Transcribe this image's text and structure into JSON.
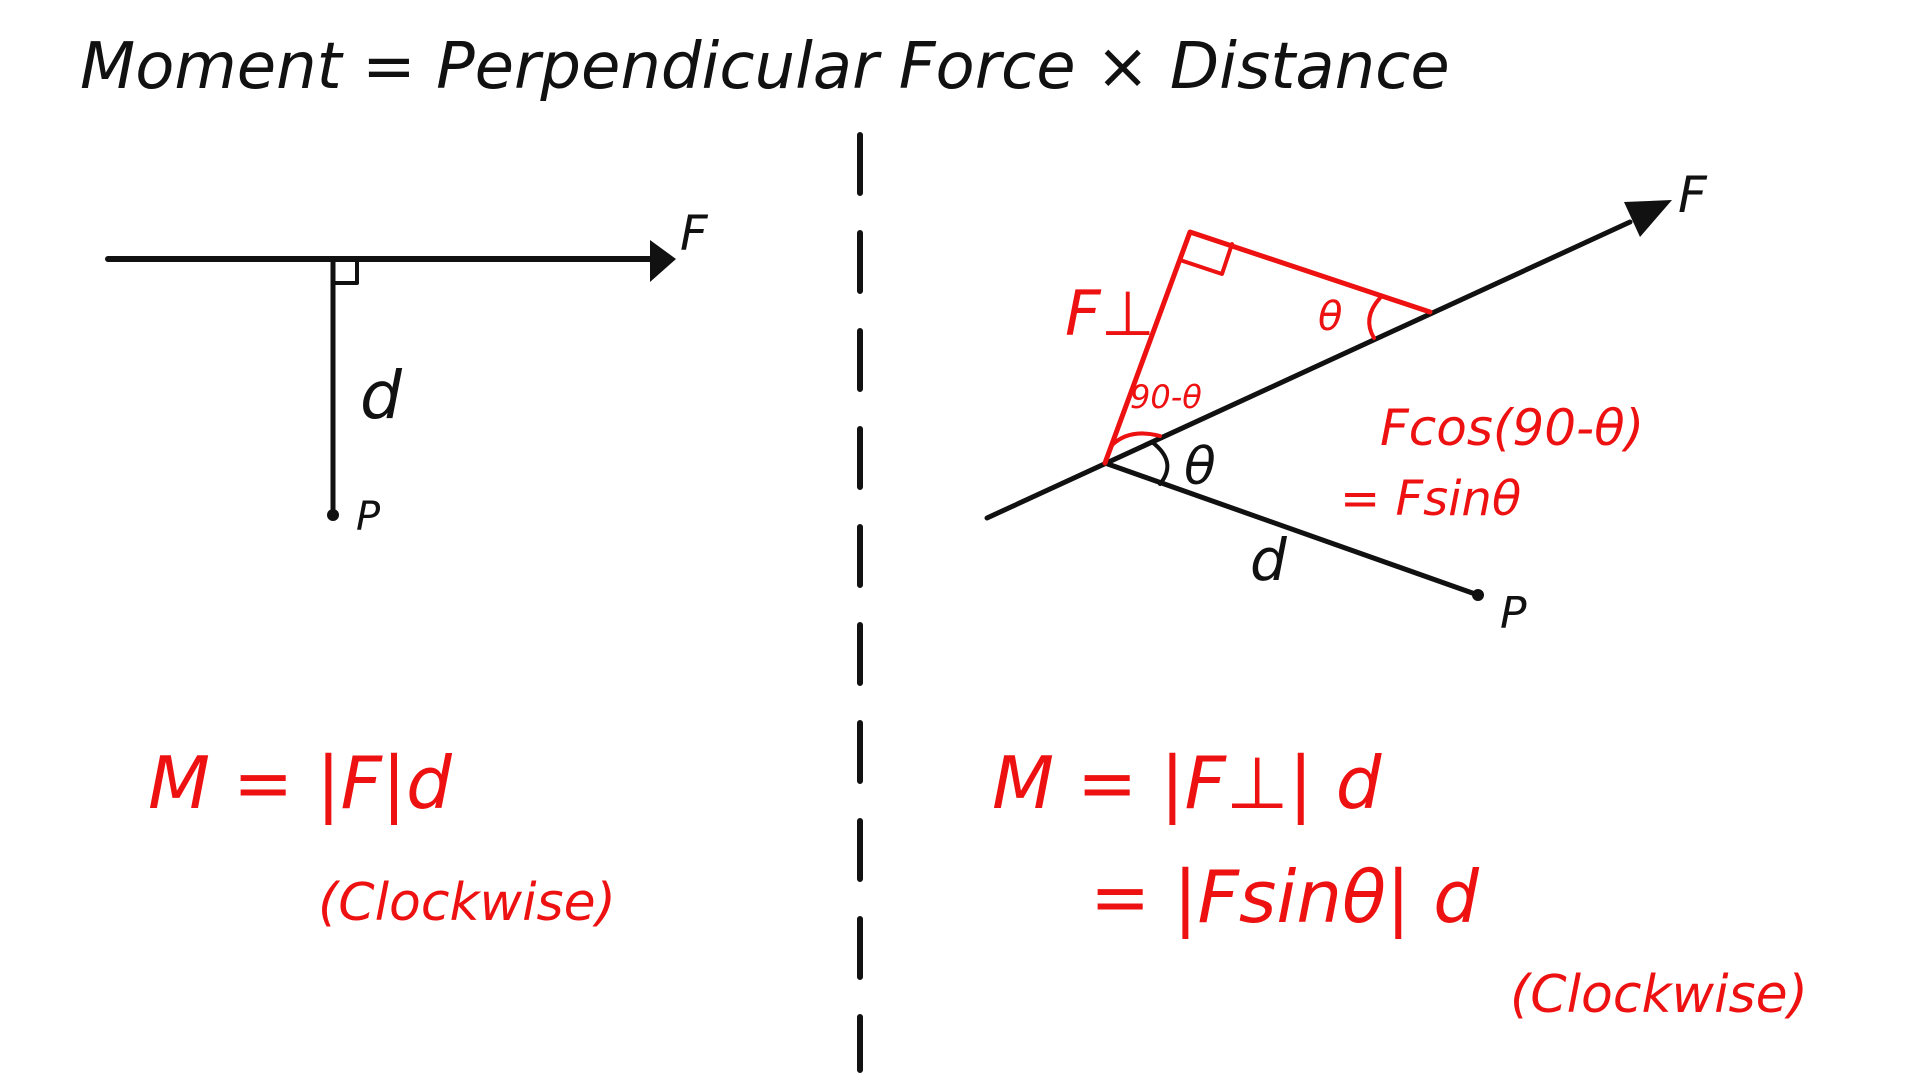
{
  "title": "Moment = Perpendicular Force × Distance",
  "left": {
    "force_label": "F",
    "distance_label": "d",
    "point_label": "P",
    "formula": "M = |F|d",
    "direction": "(Clockwise)"
  },
  "right": {
    "force_label": "F",
    "perp_force_label": "F⊥",
    "theta_top": "θ",
    "complement_angle": "90-θ",
    "theta_pivot": "θ",
    "distance_label": "d",
    "point_label": "P",
    "component_line1": "Fcos(90-θ)",
    "component_line2": "= Fsinθ",
    "formula_line1": "M = |F⊥| d",
    "formula_line2": "= |Fsinθ| d",
    "direction": "(Clockwise)"
  },
  "colors": {
    "ink": "#111111",
    "annotation": "#ee1111"
  }
}
